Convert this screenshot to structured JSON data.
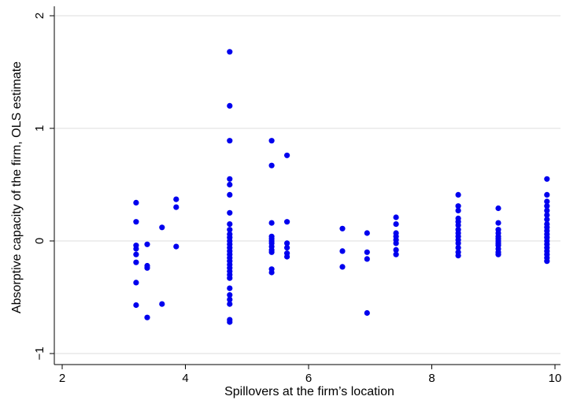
{
  "chart_data": {
    "type": "scatter",
    "title": "",
    "xlabel": "Spillovers at the firm’s location",
    "ylabel": "Absorptive capacity of the firm, OLS estimate",
    "xlim": [
      2,
      10.1
    ],
    "ylim": [
      -1.1,
      2.05
    ],
    "xticks": [
      2,
      4,
      6,
      8,
      10
    ],
    "yticks": [
      -1,
      0,
      1,
      2
    ],
    "xtick_labels": [
      "2",
      "4",
      "6",
      "8",
      "10"
    ],
    "ytick_labels": [
      "−1",
      "0",
      "1",
      "2"
    ],
    "grid": "horizontal",
    "legend": "none",
    "colors": {
      "points": "#0000ee",
      "grid": "#dcdcdc",
      "axis": "#000000"
    },
    "series": [
      {
        "points": [
          [
            3.2,
            0.34
          ],
          [
            3.2,
            0.17
          ],
          [
            3.2,
            -0.04
          ],
          [
            3.2,
            -0.07
          ],
          [
            3.2,
            -0.12
          ],
          [
            3.2,
            -0.19
          ],
          [
            3.2,
            -0.37
          ],
          [
            3.2,
            -0.57
          ],
          [
            3.38,
            -0.03
          ],
          [
            3.38,
            -0.22
          ],
          [
            3.38,
            -0.24
          ],
          [
            3.38,
            -0.68
          ],
          [
            3.62,
            0.12
          ],
          [
            3.62,
            -0.56
          ],
          [
            3.85,
            0.37
          ],
          [
            3.85,
            0.3
          ],
          [
            3.85,
            -0.05
          ],
          [
            4.72,
            1.68
          ],
          [
            4.72,
            1.2
          ],
          [
            4.72,
            0.89
          ],
          [
            4.72,
            0.55
          ],
          [
            4.72,
            0.5
          ],
          [
            4.72,
            0.41
          ],
          [
            4.72,
            0.25
          ],
          [
            4.72,
            0.15
          ],
          [
            4.72,
            0.1
          ],
          [
            4.72,
            0.06
          ],
          [
            4.72,
            0.03
          ],
          [
            4.72,
            0.0
          ],
          [
            4.72,
            -0.03
          ],
          [
            4.72,
            -0.06
          ],
          [
            4.72,
            -0.09
          ],
          [
            4.72,
            -0.12
          ],
          [
            4.72,
            -0.15
          ],
          [
            4.72,
            -0.18
          ],
          [
            4.72,
            -0.21
          ],
          [
            4.72,
            -0.24
          ],
          [
            4.72,
            -0.27
          ],
          [
            4.72,
            -0.3
          ],
          [
            4.72,
            -0.33
          ],
          [
            4.72,
            -0.42
          ],
          [
            4.72,
            -0.48
          ],
          [
            4.72,
            -0.52
          ],
          [
            4.72,
            -0.56
          ],
          [
            4.72,
            -0.7
          ],
          [
            4.72,
            -0.72
          ],
          [
            5.4,
            0.89
          ],
          [
            5.4,
            0.67
          ],
          [
            5.4,
            0.16
          ],
          [
            5.4,
            0.04
          ],
          [
            5.4,
            0.02
          ],
          [
            5.4,
            0.0
          ],
          [
            5.4,
            -0.02
          ],
          [
            5.4,
            -0.05
          ],
          [
            5.4,
            -0.08
          ],
          [
            5.4,
            -0.1
          ],
          [
            5.4,
            -0.25
          ],
          [
            5.4,
            -0.28
          ],
          [
            5.65,
            0.76
          ],
          [
            5.65,
            0.17
          ],
          [
            5.65,
            -0.02
          ],
          [
            5.65,
            -0.06
          ],
          [
            5.65,
            -0.11
          ],
          [
            5.65,
            -0.14
          ],
          [
            6.55,
            0.11
          ],
          [
            6.55,
            -0.09
          ],
          [
            6.55,
            -0.23
          ],
          [
            6.95,
            0.07
          ],
          [
            6.95,
            -0.1
          ],
          [
            6.95,
            -0.16
          ],
          [
            6.95,
            -0.64
          ],
          [
            7.42,
            0.21
          ],
          [
            7.42,
            0.15
          ],
          [
            7.42,
            0.07
          ],
          [
            7.42,
            0.04
          ],
          [
            7.42,
            0.01
          ],
          [
            7.42,
            -0.02
          ],
          [
            7.42,
            -0.08
          ],
          [
            7.42,
            -0.12
          ],
          [
            8.43,
            0.41
          ],
          [
            8.43,
            0.31
          ],
          [
            8.43,
            0.27
          ],
          [
            8.43,
            0.2
          ],
          [
            8.43,
            0.17
          ],
          [
            8.43,
            0.14
          ],
          [
            8.43,
            0.1
          ],
          [
            8.43,
            0.07
          ],
          [
            8.43,
            0.04
          ],
          [
            8.43,
            0.01
          ],
          [
            8.43,
            -0.02
          ],
          [
            8.43,
            -0.06
          ],
          [
            8.43,
            -0.1
          ],
          [
            8.43,
            -0.13
          ],
          [
            9.08,
            0.29
          ],
          [
            9.08,
            0.16
          ],
          [
            9.08,
            0.1
          ],
          [
            9.08,
            0.07
          ],
          [
            9.08,
            0.04
          ],
          [
            9.08,
            0.02
          ],
          [
            9.08,
            0.0
          ],
          [
            9.08,
            -0.02
          ],
          [
            9.08,
            -0.04
          ],
          [
            9.08,
            -0.07
          ],
          [
            9.08,
            -0.1
          ],
          [
            9.08,
            -0.12
          ],
          [
            9.87,
            0.55
          ],
          [
            9.87,
            0.41
          ],
          [
            9.87,
            0.35
          ],
          [
            9.87,
            0.31
          ],
          [
            9.87,
            0.27
          ],
          [
            9.87,
            0.23
          ],
          [
            9.87,
            0.19
          ],
          [
            9.87,
            0.15
          ],
          [
            9.87,
            0.12
          ],
          [
            9.87,
            0.09
          ],
          [
            9.87,
            0.06
          ],
          [
            9.87,
            0.03
          ],
          [
            9.87,
            0.0
          ],
          [
            9.87,
            -0.03
          ],
          [
            9.87,
            -0.06
          ],
          [
            9.87,
            -0.09
          ],
          [
            9.87,
            -0.12
          ],
          [
            9.87,
            -0.15
          ],
          [
            9.87,
            -0.18
          ]
        ]
      }
    ]
  }
}
